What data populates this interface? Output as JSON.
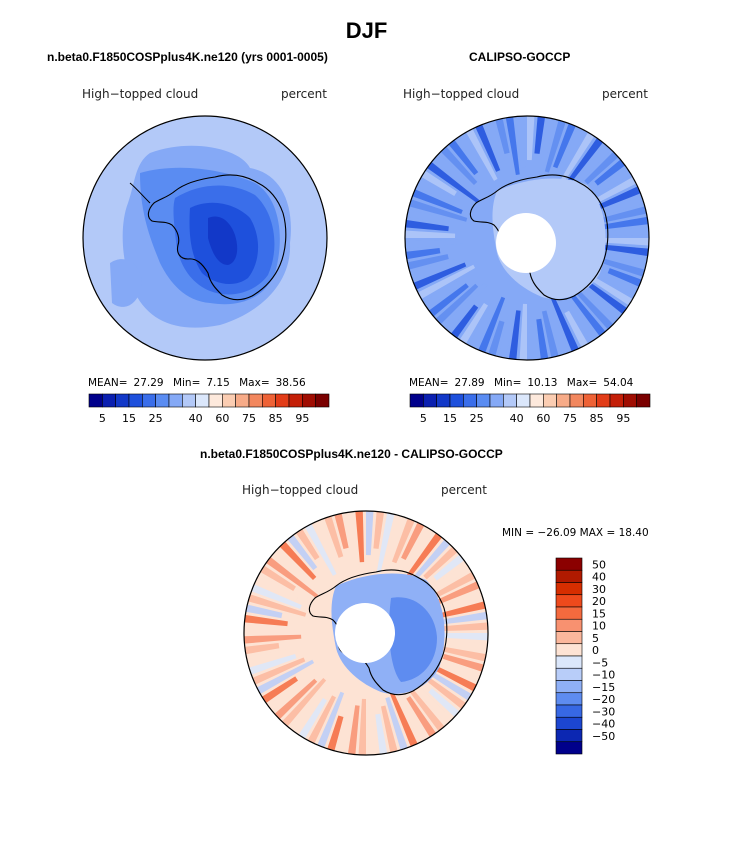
{
  "main_title": "DJF",
  "panels": [
    {
      "title": "n.beta0.F1850COSPplus4K.ne120 (yrs 0001-0005)",
      "left_label": "High−topped cloud",
      "right_label": "percent",
      "stats": {
        "mean_label": "MEAN=",
        "mean": "27.29",
        "min_label": "Min=",
        "min": "7.15",
        "max_label": "Max=",
        "max": "38.56"
      }
    },
    {
      "title": "CALIPSO-GOCCP",
      "left_label": "High−topped cloud",
      "right_label": "percent",
      "stats": {
        "mean_label": "MEAN=",
        "mean": "27.89",
        "min_label": "Min=",
        "min": "10.13",
        "max_label": "Max=",
        "max": "54.04"
      }
    },
    {
      "title": "n.beta0.F1850COSPplus4K.ne120 - CALIPSO-GOCCP",
      "left_label": "High−topped cloud",
      "right_label": "percent",
      "stats_text": "MIN = −26.09 MAX =  18.40"
    }
  ],
  "colorbar_abs": {
    "tick_labels": [
      "5",
      "15",
      "25",
      "40",
      "60",
      "75",
      "85",
      "95"
    ],
    "colors": [
      "#00008b",
      "#0a1fb0",
      "#1238c8",
      "#1e50dc",
      "#3a6eea",
      "#5a8cf2",
      "#85a9f6",
      "#b3c9f8",
      "#dbe7fb",
      "#fde9dc",
      "#fbcdb2",
      "#f7ab88",
      "#f2875e",
      "#ee6236",
      "#e23c18",
      "#c41f08",
      "#a00d02",
      "#7a0000"
    ]
  },
  "colorbar_diff": {
    "tick_labels": [
      "50",
      "40",
      "30",
      "20",
      "15",
      "10",
      "5",
      "0",
      "−5",
      "−10",
      "−15",
      "−20",
      "−30",
      "−40",
      "−50"
    ],
    "colors": [
      "#8b0000",
      "#b11a00",
      "#d62e00",
      "#ee4a1c",
      "#f46a3e",
      "#f89170",
      "#fbb79c",
      "#fde3d4",
      "#dbe7fb",
      "#b8cdf9",
      "#8fb0f6",
      "#5e8cf0",
      "#3768e4",
      "#1c46d0",
      "#0c27b2",
      "#00008b"
    ]
  },
  "chart_data": [
    {
      "type": "heatmap",
      "title": "n.beta0.F1850COSPplus4K.ne120 (yrs 0001-0005)",
      "field": "High-topped cloud",
      "units": "percent",
      "projection": "south polar stereographic",
      "mean": 27.29,
      "min": 7.15,
      "max": 38.56,
      "levels": [
        5,
        10,
        15,
        20,
        25,
        30,
        35,
        40,
        50,
        60,
        65,
        70,
        75,
        80,
        85,
        90,
        95
      ]
    },
    {
      "type": "heatmap",
      "title": "CALIPSO-GOCCP",
      "field": "High-topped cloud",
      "units": "percent",
      "projection": "south polar stereographic",
      "mean": 27.89,
      "min": 10.13,
      "max": 54.04,
      "levels": [
        5,
        10,
        15,
        20,
        25,
        30,
        35,
        40,
        50,
        60,
        65,
        70,
        75,
        80,
        85,
        90,
        95
      ]
    },
    {
      "type": "heatmap",
      "title": "n.beta0.F1850COSPplus4K.ne120 - CALIPSO-GOCCP",
      "field": "High-topped cloud",
      "units": "percent",
      "projection": "south polar stereographic",
      "min": -26.09,
      "max": 18.4,
      "levels": [
        -50,
        -40,
        -30,
        -20,
        -15,
        -10,
        -5,
        0,
        5,
        10,
        15,
        20,
        30,
        40,
        50
      ]
    }
  ]
}
